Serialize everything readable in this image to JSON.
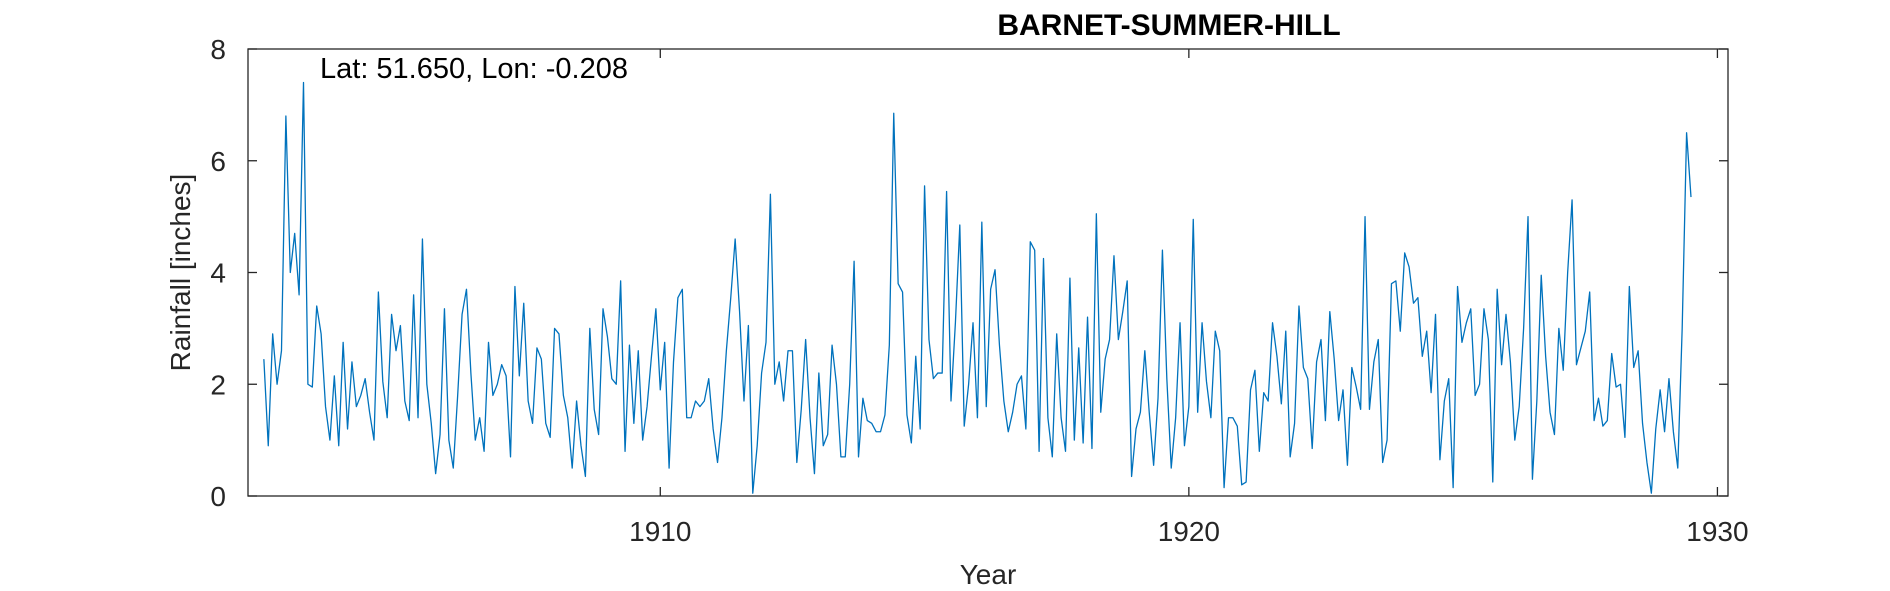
{
  "chart_data": {
    "type": "line",
    "title": "BARNET-SUMMER-HILL",
    "annotation": "Lat: 51.650, Lon: -0.208",
    "xlabel": "Year",
    "ylabel": "Rainfall [inches]",
    "xlim": [
      1902.2,
      1930.2
    ],
    "ylim": [
      0,
      8
    ],
    "xticks": [
      1910,
      1920,
      1930
    ],
    "yticks": [
      0,
      2,
      4,
      6,
      8
    ],
    "grid": false,
    "line_color": "#0072BD",
    "series": [
      {
        "x_start": 1902.5,
        "x_step": 0.083333,
        "values": [
          2.45,
          0.9,
          2.9,
          2.0,
          2.6,
          6.8,
          4.0,
          4.7,
          3.6,
          7.4,
          2.0,
          1.95,
          3.4,
          2.9,
          1.6,
          1.0,
          2.15,
          0.9,
          2.75,
          1.2,
          2.4,
          1.6,
          1.8,
          2.1,
          1.5,
          1.0,
          3.65,
          2.05,
          1.4,
          3.25,
          2.6,
          3.05,
          1.7,
          1.35,
          3.6,
          1.4,
          4.6,
          2.0,
          1.3,
          0.4,
          1.1,
          3.35,
          1.0,
          0.5,
          1.8,
          3.25,
          3.7,
          2.2,
          1.0,
          1.4,
          0.8,
          2.75,
          1.8,
          2.0,
          2.35,
          2.15,
          0.7,
          3.75,
          2.15,
          3.45,
          1.7,
          1.3,
          2.65,
          2.45,
          1.3,
          1.05,
          3.0,
          2.9,
          1.8,
          1.4,
          0.5,
          1.7,
          0.9,
          0.35,
          3.0,
          1.55,
          1.1,
          3.35,
          2.85,
          2.1,
          2.0,
          3.85,
          0.8,
          2.7,
          1.3,
          2.6,
          1.0,
          1.6,
          2.5,
          3.35,
          1.9,
          2.75,
          0.5,
          2.4,
          3.55,
          3.7,
          1.4,
          1.4,
          1.7,
          1.6,
          1.7,
          2.1,
          1.2,
          0.6,
          1.4,
          2.6,
          3.55,
          4.6,
          3.3,
          1.7,
          3.05,
          0.05,
          0.9,
          2.2,
          2.75,
          5.4,
          2.0,
          2.4,
          1.7,
          2.6,
          2.6,
          0.6,
          1.55,
          2.8,
          1.4,
          0.4,
          2.2,
          0.9,
          1.1,
          2.7,
          2.0,
          0.7,
          0.7,
          2.0,
          4.2,
          0.7,
          1.75,
          1.35,
          1.3,
          1.15,
          1.15,
          1.45,
          2.7,
          6.85,
          3.8,
          3.65,
          1.45,
          0.95,
          2.5,
          1.2,
          5.55,
          2.8,
          2.1,
          2.2,
          2.2,
          5.45,
          1.7,
          3.1,
          4.85,
          1.25,
          2.0,
          3.1,
          1.4,
          4.9,
          1.6,
          3.7,
          4.05,
          2.7,
          1.7,
          1.15,
          1.5,
          2.0,
          2.15,
          1.2,
          4.55,
          4.4,
          0.8,
          4.25,
          1.4,
          0.7,
          2.9,
          1.4,
          0.8,
          3.9,
          1.0,
          2.65,
          0.95,
          3.2,
          0.85,
          5.05,
          1.5,
          2.45,
          2.8,
          4.3,
          2.8,
          3.3,
          3.85,
          0.35,
          1.2,
          1.5,
          2.6,
          1.5,
          0.55,
          1.75,
          4.4,
          2.1,
          0.5,
          1.4,
          3.1,
          0.9,
          1.6,
          4.95,
          1.5,
          3.1,
          2.05,
          1.4,
          2.95,
          2.6,
          0.15,
          1.4,
          1.4,
          1.25,
          0.2,
          0.25,
          1.9,
          2.25,
          0.8,
          1.85,
          1.7,
          3.1,
          2.5,
          1.65,
          2.95,
          0.7,
          1.3,
          3.4,
          2.3,
          2.1,
          0.85,
          2.4,
          2.8,
          1.35,
          3.3,
          2.45,
          1.35,
          1.9,
          0.55,
          2.3,
          1.95,
          1.55,
          5.0,
          1.55,
          2.4,
          2.8,
          0.6,
          1.0,
          3.8,
          3.85,
          2.95,
          4.35,
          4.1,
          3.45,
          3.55,
          2.5,
          2.95,
          1.85,
          3.25,
          0.65,
          1.7,
          2.1,
          0.15,
          3.75,
          2.75,
          3.1,
          3.35,
          1.8,
          2.0,
          3.35,
          2.8,
          0.25,
          3.7,
          2.35,
          3.25,
          2.4,
          1.0,
          1.6,
          3.0,
          5.0,
          0.3,
          1.7,
          3.95,
          2.5,
          1.5,
          1.1,
          3.0,
          2.25,
          4.0,
          5.3,
          2.35,
          2.65,
          2.95,
          3.65,
          1.35,
          1.75,
          1.25,
          1.35,
          2.55,
          1.95,
          2.0,
          1.05,
          3.75,
          2.3,
          2.6,
          1.3,
          0.6,
          0.05,
          1.2,
          1.9,
          1.15,
          2.1,
          1.15,
          0.5,
          3.0,
          6.5,
          5.35
        ]
      }
    ]
  }
}
